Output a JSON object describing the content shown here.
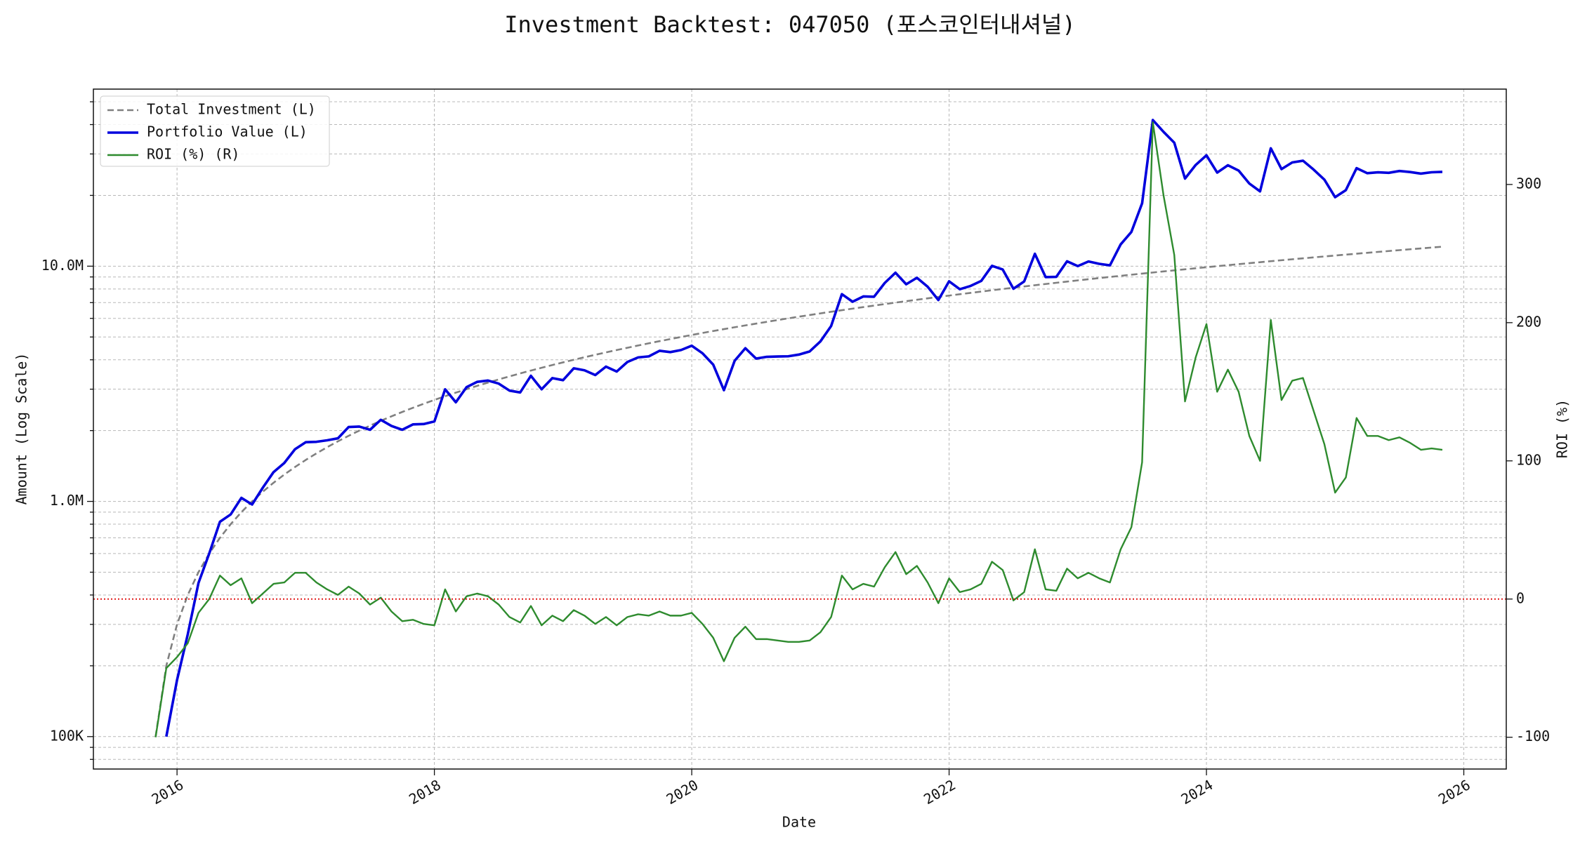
{
  "chart_data": {
    "type": "line",
    "title": "Investment Backtest: 047050 (포스코인터내셔널)",
    "x_label": "Date",
    "y_label": "Amount (Log Scale)",
    "y2_label": "ROI (%)",
    "y_label_color": "#1010cc",
    "y2_label_color": "#2a8a2a",
    "y_scale": "log",
    "grid": true,
    "legend": "upper left",
    "x": [
      "2015-11",
      "2015-12",
      "2016-01",
      "2016-02",
      "2016-03",
      "2016-04",
      "2016-05",
      "2016-06",
      "2016-07",
      "2016-08",
      "2016-09",
      "2016-10",
      "2016-11",
      "2016-12",
      "2017-01",
      "2017-02",
      "2017-03",
      "2017-04",
      "2017-05",
      "2017-06",
      "2017-07",
      "2017-08",
      "2017-09",
      "2017-10",
      "2017-11",
      "2017-12",
      "2018-01",
      "2018-02",
      "2018-03",
      "2018-04",
      "2018-05",
      "2018-06",
      "2018-07",
      "2018-08",
      "2018-09",
      "2018-10",
      "2018-11",
      "2018-12",
      "2019-01",
      "2019-02",
      "2019-03",
      "2019-04",
      "2019-05",
      "2019-06",
      "2019-07",
      "2019-08",
      "2019-09",
      "2019-10",
      "2019-11",
      "2019-12",
      "2020-01",
      "2020-02",
      "2020-03",
      "2020-04",
      "2020-05",
      "2020-06",
      "2020-07",
      "2020-08",
      "2020-09",
      "2020-10",
      "2020-11",
      "2020-12",
      "2021-01",
      "2021-02",
      "2021-03",
      "2021-04",
      "2021-05",
      "2021-06",
      "2021-07",
      "2021-08",
      "2021-09",
      "2021-10",
      "2021-11",
      "2021-12",
      "2022-01",
      "2022-02",
      "2022-03",
      "2022-04",
      "2022-05",
      "2022-06",
      "2022-07",
      "2022-08",
      "2022-09",
      "2022-10",
      "2022-11",
      "2022-12",
      "2023-01",
      "2023-02",
      "2023-03",
      "2023-04",
      "2023-05",
      "2023-06",
      "2023-07",
      "2023-08",
      "2023-09",
      "2023-10",
      "2023-11",
      "2023-12",
      "2024-01",
      "2024-02",
      "2024-03",
      "2024-04",
      "2024-05",
      "2024-06",
      "2024-07",
      "2024-08",
      "2024-09",
      "2024-10",
      "2024-11",
      "2024-12",
      "2025-01",
      "2025-02",
      "2025-03",
      "2025-04",
      "2025-05",
      "2025-06",
      "2025-07",
      "2025-08",
      "2025-09",
      "2025-10",
      "2025-11"
    ],
    "xlim": [
      2015.35,
      2026.33
    ],
    "xticks": [
      2016,
      2018,
      2020,
      2022,
      2024,
      2026
    ],
    "ylim": [
      72800,
      56600000
    ],
    "yticks": [
      {
        "value": 100000,
        "label": "100K"
      },
      {
        "value": 1000000,
        "label": "1.0M"
      },
      {
        "value": 10000000,
        "label": "10.0M"
      }
    ],
    "yminorticks": [
      80000,
      90000,
      200000,
      300000,
      400000,
      500000,
      600000,
      700000,
      800000,
      900000,
      2000000,
      3000000,
      4000000,
      5000000,
      6000000,
      7000000,
      8000000,
      9000000,
      20000000,
      30000000,
      40000000,
      50000000
    ],
    "y2lim": [
      -123,
      369
    ],
    "y2ticks": [
      -100,
      0,
      100,
      200,
      300
    ],
    "hline": {
      "value": 0,
      "axis": "y2",
      "color": "#dd0000"
    },
    "series": [
      {
        "name": "Total Investment (L)",
        "color": "#808080",
        "linestyle": "dashed",
        "axis": "y",
        "values": [
          100000,
          200000,
          300000,
          400000,
          500000,
          600000,
          700000,
          800000,
          900000,
          1000000,
          1100000,
          1200000,
          1300000,
          1400000,
          1500000,
          1600000,
          1700000,
          1800000,
          1900000,
          2000000,
          2100000,
          2200000,
          2300000,
          2400000,
          2500000,
          2600000,
          2700000,
          2800000,
          2900000,
          3000000,
          3100000,
          3200000,
          3300000,
          3400000,
          3500000,
          3600000,
          3700000,
          3800000,
          3900000,
          4000000,
          4100000,
          4200000,
          4300000,
          4400000,
          4500000,
          4600000,
          4700000,
          4800000,
          4900000,
          5000000,
          5100000,
          5200000,
          5300000,
          5400000,
          5500000,
          5600000,
          5700000,
          5800000,
          5900000,
          6000000,
          6100000,
          6200000,
          6300000,
          6400000,
          6500000,
          6600000,
          6700000,
          6800000,
          6900000,
          7000000,
          7100000,
          7200000,
          7300000,
          7400000,
          7500000,
          7600000,
          7700000,
          7800000,
          7900000,
          8000000,
          8100000,
          8200000,
          8300000,
          8400000,
          8500000,
          8600000,
          8700000,
          8800000,
          8900000,
          9000000,
          9100000,
          9200000,
          9300000,
          9400000,
          9500000,
          9600000,
          9700000,
          9800000,
          9900000,
          10000000,
          10100000,
          10200000,
          10300000,
          10400000,
          10500000,
          10600000,
          10700000,
          10800000,
          10900000,
          11000000,
          11100000,
          11200000,
          11300000,
          11400000,
          11500000,
          11600000,
          11700000,
          11800000,
          11900000,
          12000000,
          12100000
        ]
      },
      {
        "name": "Portfolio Value (L)",
        "color": "#0000dd",
        "linestyle": "solid",
        "axis": "y",
        "values": [
          null,
          100000,
          174000,
          272000,
          450000,
          600000,
          819000,
          880000,
          1035000,
          970000,
          1144000,
          1332000,
          1456000,
          1666000,
          1785000,
          1792000,
          1819000,
          1854000,
          2071000,
          2080000,
          2016000,
          2222000,
          2093000,
          2016000,
          2125000,
          2132000,
          2187000,
          2996000,
          2639000,
          3060000,
          3224000,
          3264000,
          3168000,
          2958000,
          2905000,
          3420000,
          2997000,
          3344000,
          3276000,
          3680000,
          3608000,
          3444000,
          3741000,
          3564000,
          3915000,
          4094000,
          4136000,
          4368000,
          4312000,
          4400000,
          4590000,
          4264000,
          3816000,
          2970000,
          3960000,
          4480000,
          4047000,
          4118000,
          4130000,
          4140000,
          4209000,
          4340000,
          4788000,
          5568000,
          7605000,
          7062000,
          7437000,
          7412000,
          8487000,
          9380000,
          8378000,
          8928000,
          8176000,
          7178000,
          8625000,
          7980000,
          8239000,
          8658000,
          10033000,
          9680000,
          8019000,
          8610000,
          11288000,
          8988000,
          9010000,
          10492000,
          10005000,
          10472000,
          10235000,
          10080000,
          12376000,
          13984000,
          18507000,
          41830000,
          37240000,
          33504000,
          23571000,
          26950000,
          29601000,
          25000000,
          26866000,
          25500000,
          22454000,
          20800000,
          31710000,
          25864000,
          27606000,
          28080000,
          25724000,
          23320000,
          19647000,
          21056000,
          26103000,
          24852000,
          25070000,
          24940000,
          25389000,
          25134000,
          24752000,
          25080000,
          25168000
        ]
      },
      {
        "name": "ROI (%) (R)",
        "color": "#2e8b2e",
        "linestyle": "solid",
        "axis": "y2",
        "values": [
          -100,
          -50,
          -42,
          -32,
          -10,
          0,
          17,
          10,
          15,
          -3,
          4,
          11,
          12,
          19,
          19,
          12,
          7,
          3,
          9,
          4,
          -4,
          1,
          -9,
          -16,
          -15,
          -18,
          -19,
          7,
          -9,
          2,
          4,
          2,
          -4,
          -13,
          -17,
          -5,
          -19,
          -12,
          -16,
          -8,
          -12,
          -18,
          -13,
          -19,
          -13,
          -11,
          -12,
          -9,
          -12,
          -12,
          -10,
          -18,
          -28,
          -45,
          -28,
          -20,
          -29,
          -29,
          -30,
          -31,
          -31,
          -30,
          -24,
          -13,
          17,
          7,
          11,
          9,
          23,
          34,
          18,
          24,
          12,
          -3,
          15,
          5,
          7,
          11,
          27,
          21,
          -1,
          5,
          36,
          7,
          6,
          22,
          15,
          19,
          15,
          12,
          36,
          52,
          99,
          345,
          292,
          249,
          143,
          175,
          199,
          150,
          166,
          150,
          118,
          100,
          202,
          144,
          158,
          160,
          136,
          112,
          77,
          88,
          131,
          118,
          118,
          115,
          117,
          113,
          108,
          109,
          108
        ]
      }
    ]
  }
}
